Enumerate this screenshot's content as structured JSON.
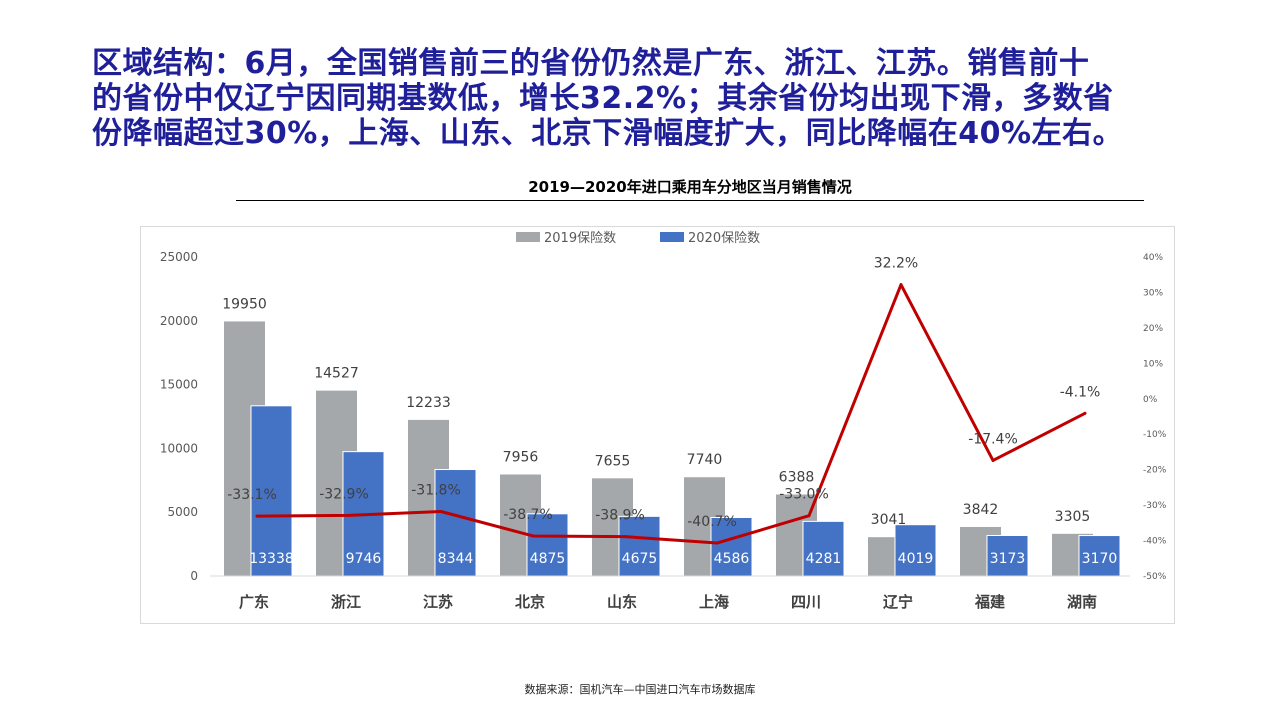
{
  "headline": {
    "lines": [
      "区域结构：6月，全国销售前三的省份仍然是广东、浙江、江苏。销售前十",
      "的省份中仅辽宁因同期基数低，增长32.2%；其余省份均出现下滑，多数省",
      "份降幅超过30%，上海、山东、北京下滑幅度扩大，同比降幅在40%左右。"
    ]
  },
  "chart_title": "2019—2020年进口乘用车分地区当月销售情况",
  "source_note": "数据来源：国机汽车—中国进口汽车市场数据库",
  "chart_data": {
    "type": "bar",
    "categories": [
      "广东",
      "浙江",
      "江苏",
      "北京",
      "山东",
      "上海",
      "四川",
      "辽宁",
      "福建",
      "湖南"
    ],
    "series": [
      {
        "name": "2019保险数",
        "type": "bar",
        "color": "#a5a8ab",
        "values": [
          19950,
          14527,
          12233,
          7956,
          7655,
          7740,
          6388,
          3041,
          3842,
          3305
        ]
      },
      {
        "name": "2020保险数",
        "type": "bar",
        "color": "#4472c4",
        "values": [
          13338,
          9746,
          8344,
          4875,
          4675,
          4586,
          4281,
          4019,
          3173,
          3170
        ]
      },
      {
        "name": "",
        "type": "line",
        "axis": "right",
        "color": "#c00000",
        "values": [
          -33.1,
          -32.9,
          -31.8,
          -38.7,
          -38.9,
          -40.7,
          -33.0,
          32.2,
          -17.4,
          -4.1
        ],
        "labels": [
          "-33.1%",
          "-32.9%",
          "-31.8%",
          "-38.7%",
          "-38.9%",
          "-40.7%",
          "-33.0%",
          "32.2%",
          "-17.4%",
          "-4.1%"
        ]
      }
    ],
    "y_left": {
      "range": [
        0,
        25000
      ],
      "ticks": [
        "0",
        "5000",
        "10000",
        "15000",
        "20000",
        "25000"
      ]
    },
    "y_right": {
      "range": [
        -50,
        40
      ],
      "ticks": [
        "-50%",
        "-40%",
        "-30%",
        "-20%",
        "-10%",
        "0%",
        "10%",
        "20%",
        "30%",
        "40%"
      ]
    },
    "legend": "top",
    "grid": false
  }
}
